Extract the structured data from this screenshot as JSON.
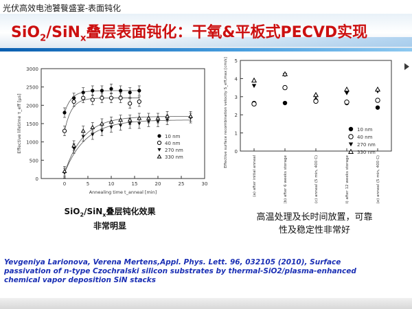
{
  "header": {
    "label": "光伏高效电池饕餮盛宴-表面钝化"
  },
  "title": {
    "pre": "SiO",
    "sub1": "2",
    "mid": "/SiN",
    "sub2": "x",
    "post": "叠层表面钝化：干氧&平板式PECVD实现"
  },
  "captions": {
    "left_pre": "SiO",
    "left_sub1": "2",
    "left_mid": "/SiN",
    "left_sub2": "x",
    "left_post": "叠层钝化效果",
    "left_line2": "非常明显",
    "right_line1": "高温处理及长时间放置，可靠",
    "right_line2": "性及稳定性非常好"
  },
  "reference": "Yevgeniya Larionova, Verena Mertens,Appl. Phys. Lett. 96, 032105 (2010), Surface passivation of n-type Czochralski silicon substrates by thermal-SiO2/plasma-enhanced chemical vapor deposition SiN stacks",
  "colors": {
    "title": "#cc1010",
    "reference": "#1a2fb4",
    "title_rule": "#0a5fb0"
  },
  "chart_data": [
    {
      "type": "scatter",
      "xlabel": "Annealing time t_anneal [min]",
      "ylabel": "Effective lifetime τ_eff [μs]",
      "xlim": [
        -5,
        30
      ],
      "ylim": [
        0,
        3000
      ],
      "xticks": [
        0,
        5,
        10,
        15,
        20,
        25,
        30
      ],
      "yticks": [
        0,
        500,
        1000,
        1500,
        2000,
        2500,
        3000
      ],
      "legend_position": "bottom-right",
      "series": [
        {
          "name": "10 nm",
          "marker": "filled-circle",
          "x": [
            0,
            2,
            4,
            6,
            8,
            10,
            12,
            14,
            16
          ],
          "y": [
            1800,
            2200,
            2350,
            2400,
            2400,
            2450,
            2400,
            2350,
            2400
          ]
        },
        {
          "name": "40 nm",
          "marker": "open-circle",
          "x": [
            0,
            2,
            4,
            6,
            8,
            10,
            12,
            14,
            16
          ],
          "y": [
            1300,
            2100,
            2200,
            2150,
            2200,
            2200,
            2200,
            2050,
            2100
          ]
        },
        {
          "name": "270 nm",
          "marker": "filled-triangle-down",
          "x": [
            0,
            2,
            4,
            6,
            8,
            10,
            12,
            14,
            16,
            18,
            20,
            22,
            27
          ],
          "y": [
            150,
            820,
            1150,
            1200,
            1300,
            1400,
            1450,
            1500,
            1500,
            1550,
            1550,
            1600,
            1650
          ]
        },
        {
          "name": "330 nm",
          "marker": "open-triangle-up",
          "x": [
            0,
            2,
            4,
            6,
            8,
            10,
            12,
            14,
            16,
            18,
            20,
            22,
            27
          ],
          "y": [
            200,
            900,
            1300,
            1400,
            1500,
            1550,
            1600,
            1600,
            1650,
            1650,
            1650,
            1700,
            1700
          ]
        }
      ]
    },
    {
      "type": "scatter",
      "ylabel": "Effective surface recombination velocity S_eff,max [cm/s]",
      "ylim": [
        0,
        5
      ],
      "yticks": [
        0,
        1,
        2,
        3,
        4,
        5
      ],
      "categories": [
        "(a) after initial anneal",
        "(b) after 6 weeks storage",
        "(c) anneal (5 min, 400 C)",
        "(d) after 12 weeks storage",
        "(e) anneal (5 min, 400 C)"
      ],
      "legend_position": "bottom-right",
      "series": [
        {
          "name": "10 nm",
          "marker": "filled-circle",
          "values": [
            2.65,
            2.65,
            2.8,
            2.65,
            2.4
          ]
        },
        {
          "name": "40 nm",
          "marker": "open-circle",
          "values": [
            2.6,
            3.5,
            2.75,
            2.7,
            2.8
          ]
        },
        {
          "name": "270 nm",
          "marker": "filled-triangle-down",
          "values": [
            3.6,
            4.2,
            3.0,
            3.2,
            3.3
          ]
        },
        {
          "name": "330 nm",
          "marker": "open-triangle-up",
          "values": [
            3.9,
            4.25,
            3.1,
            3.4,
            3.4
          ]
        }
      ]
    }
  ]
}
